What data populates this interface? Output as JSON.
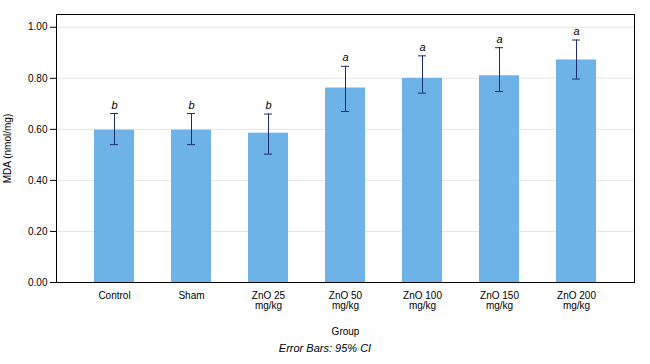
{
  "chart_data": {
    "type": "bar",
    "categories": [
      "Control",
      "Sham",
      "ZnO 25\nmg/kg",
      "ZnO 50\nmg/kg",
      "ZnO 100\nmg/kg",
      "ZnO 150\nmg/kg",
      "ZnO 200\nmg/kg"
    ],
    "values": [
      0.597,
      0.597,
      0.585,
      0.762,
      0.8,
      0.81,
      0.872
    ],
    "errors_upper": [
      0.065,
      0.065,
      0.075,
      0.085,
      0.088,
      0.11,
      0.078
    ],
    "errors_lower": [
      0.057,
      0.057,
      0.082,
      0.092,
      0.058,
      0.062,
      0.075
    ],
    "significance": [
      "b",
      "b",
      "b",
      "a",
      "a",
      "a",
      "a"
    ],
    "color": "#6db3e8",
    "error_color": "#1c2b6e",
    "xlabel": "Group",
    "ylabel": "MDA (nmol/mg)",
    "footnote": "Error Bars: 95% CI",
    "ylim": [
      0.0,
      1.05
    ],
    "yticks": [
      {
        "value": 0.0,
        "label": "0.00"
      },
      {
        "value": 0.2,
        "label": "0.20"
      },
      {
        "value": 0.4,
        "label": "0.40"
      },
      {
        "value": 0.6,
        "label": "0.60"
      },
      {
        "value": 0.8,
        "label": "0.80"
      },
      {
        "value": 1.0,
        "label": "1.00"
      }
    ],
    "grid": true
  }
}
